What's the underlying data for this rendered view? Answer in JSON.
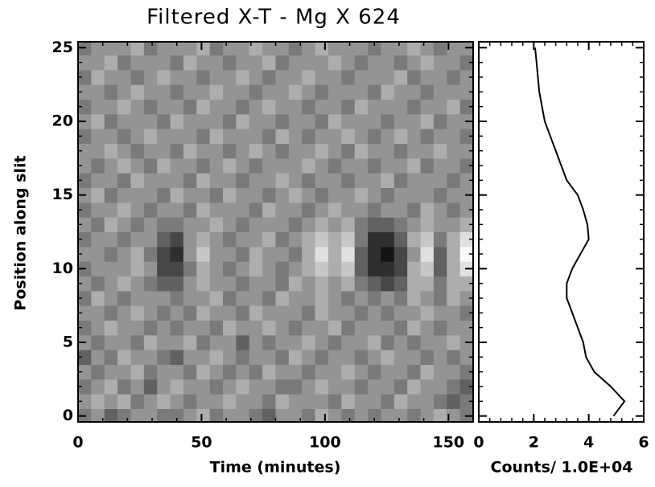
{
  "chart_data": [
    {
      "type": "heatmap",
      "title": "Filtered X-T - Mg X 624",
      "xlabel": "Time (minutes)",
      "ylabel": "Position along slit",
      "xlim": [
        0,
        160
      ],
      "ylim": [
        -0.4,
        25.4
      ],
      "xticks": [
        0,
        50,
        100,
        150
      ],
      "yticks": [
        0,
        5,
        10,
        15,
        20,
        25
      ],
      "minor_ticks": 5,
      "zlim": [
        0,
        9
      ],
      "y": [
        0,
        1,
        2,
        3,
        4,
        5,
        6,
        7,
        8,
        9,
        10,
        11,
        12,
        13,
        14,
        15,
        16,
        17,
        18,
        19,
        20,
        21,
        22,
        23,
        24,
        25
      ],
      "z": [
        [
          4,
          5,
          3,
          4,
          5,
          5,
          4,
          4,
          5,
          6,
          4,
          5,
          5,
          4,
          3,
          5,
          5,
          4,
          6,
          5,
          4,
          5,
          4,
          5,
          5,
          4,
          5,
          6,
          5,
          4
        ],
        [
          5,
          6,
          5,
          6,
          4,
          5,
          6,
          5,
          4,
          5,
          5,
          6,
          5,
          5,
          4,
          6,
          5,
          5,
          5,
          4,
          6,
          5,
          5,
          4,
          6,
          5,
          5,
          4,
          3,
          4
        ],
        [
          4,
          5,
          6,
          4,
          5,
          3,
          5,
          6,
          5,
          5,
          4,
          5,
          6,
          5,
          5,
          4,
          4,
          5,
          6,
          5,
          5,
          4,
          5,
          5,
          4,
          6,
          5,
          5,
          4,
          3
        ],
        [
          5,
          4,
          5,
          5,
          6,
          4,
          5,
          5,
          4,
          6,
          5,
          4,
          5,
          4,
          6,
          5,
          5,
          4,
          5,
          5,
          6,
          5,
          4,
          5,
          5,
          4,
          6,
          5,
          5,
          4
        ],
        [
          3,
          5,
          4,
          6,
          5,
          5,
          4,
          3,
          5,
          5,
          6,
          5,
          4,
          5,
          5,
          4,
          6,
          5,
          4,
          5,
          5,
          4,
          5,
          6,
          5,
          5,
          4,
          5,
          4,
          5
        ],
        [
          5,
          4,
          5,
          5,
          4,
          6,
          5,
          5,
          6,
          4,
          5,
          5,
          3,
          5,
          4,
          5,
          5,
          6,
          5,
          4,
          5,
          5,
          6,
          4,
          5,
          4,
          5,
          5,
          6,
          5
        ],
        [
          4,
          5,
          6,
          5,
          5,
          4,
          5,
          4,
          5,
          5,
          4,
          6,
          5,
          5,
          6,
          5,
          4,
          5,
          5,
          6,
          4,
          5,
          5,
          5,
          4,
          6,
          5,
          4,
          5,
          5
        ],
        [
          5,
          5,
          4,
          5,
          6,
          5,
          4,
          5,
          4,
          6,
          5,
          5,
          4,
          6,
          5,
          5,
          5,
          4,
          6,
          5,
          5,
          4,
          5,
          4,
          5,
          5,
          6,
          5,
          5,
          4
        ],
        [
          4,
          6,
          5,
          4,
          5,
          5,
          5,
          4,
          5,
          5,
          6,
          4,
          5,
          5,
          4,
          6,
          5,
          5,
          6,
          5,
          4,
          5,
          4,
          5,
          4,
          6,
          5,
          4,
          6,
          5
        ],
        [
          5,
          4,
          5,
          6,
          5,
          4,
          3,
          3,
          5,
          6,
          5,
          5,
          4,
          5,
          5,
          4,
          6,
          5,
          6,
          5,
          6,
          4,
          3,
          2,
          3,
          6,
          6,
          4,
          6,
          6
        ],
        [
          4,
          5,
          5,
          5,
          6,
          5,
          2,
          2,
          4,
          6,
          5,
          4,
          5,
          6,
          5,
          4,
          5,
          6,
          7,
          6,
          7,
          3,
          1,
          1,
          2,
          6,
          7,
          3,
          6,
          8
        ],
        [
          5,
          5,
          4,
          5,
          6,
          4,
          2,
          1,
          5,
          7,
          5,
          5,
          4,
          6,
          5,
          5,
          4,
          6,
          8,
          6,
          8,
          3,
          1,
          0,
          2,
          5,
          8,
          3,
          6,
          9
        ],
        [
          4,
          5,
          5,
          4,
          5,
          5,
          3,
          2,
          5,
          6,
          5,
          4,
          5,
          5,
          6,
          4,
          5,
          6,
          7,
          6,
          7,
          4,
          1,
          1,
          3,
          6,
          7,
          4,
          6,
          8
        ],
        [
          5,
          4,
          6,
          5,
          4,
          5,
          4,
          4,
          5,
          5,
          6,
          5,
          4,
          5,
          5,
          5,
          4,
          5,
          6,
          5,
          6,
          4,
          3,
          3,
          4,
          5,
          6,
          5,
          5,
          6
        ],
        [
          4,
          5,
          5,
          6,
          5,
          4,
          5,
          5,
          4,
          6,
          5,
          5,
          5,
          4,
          6,
          5,
          5,
          4,
          5,
          6,
          5,
          5,
          4,
          5,
          5,
          4,
          6,
          5,
          4,
          5
        ],
        [
          5,
          6,
          4,
          5,
          5,
          5,
          4,
          6,
          5,
          5,
          4,
          6,
          5,
          5,
          4,
          5,
          6,
          5,
          4,
          5,
          5,
          6,
          5,
          4,
          5,
          5,
          5,
          4,
          5,
          5
        ],
        [
          4,
          5,
          5,
          4,
          6,
          5,
          5,
          5,
          4,
          6,
          5,
          5,
          4,
          5,
          5,
          6,
          5,
          4,
          5,
          5,
          4,
          5,
          5,
          6,
          4,
          5,
          5,
          5,
          4,
          5
        ],
        [
          5,
          4,
          5,
          6,
          5,
          4,
          6,
          5,
          5,
          4,
          5,
          6,
          5,
          4,
          5,
          5,
          5,
          6,
          5,
          4,
          5,
          5,
          4,
          5,
          5,
          6,
          4,
          5,
          5,
          4
        ],
        [
          5,
          5,
          6,
          5,
          4,
          5,
          5,
          4,
          6,
          5,
          5,
          4,
          5,
          6,
          5,
          4,
          5,
          5,
          6,
          5,
          4,
          6,
          5,
          5,
          4,
          5,
          5,
          6,
          5,
          5
        ],
        [
          4,
          5,
          5,
          4,
          5,
          6,
          5,
          5,
          5,
          4,
          6,
          5,
          5,
          5,
          4,
          6,
          5,
          4,
          5,
          5,
          6,
          5,
          4,
          5,
          6,
          5,
          4,
          5,
          5,
          4
        ],
        [
          5,
          6,
          4,
          5,
          5,
          5,
          4,
          6,
          5,
          5,
          5,
          4,
          6,
          5,
          5,
          4,
          5,
          5,
          4,
          6,
          5,
          5,
          5,
          4,
          5,
          5,
          6,
          4,
          5,
          5
        ],
        [
          4,
          5,
          5,
          6,
          5,
          4,
          5,
          5,
          4,
          6,
          5,
          5,
          4,
          5,
          6,
          5,
          5,
          4,
          5,
          5,
          4,
          6,
          5,
          5,
          5,
          4,
          5,
          5,
          6,
          4
        ],
        [
          5,
          5,
          4,
          5,
          6,
          5,
          5,
          4,
          5,
          5,
          6,
          5,
          5,
          4,
          5,
          5,
          6,
          5,
          4,
          5,
          5,
          5,
          4,
          6,
          5,
          5,
          4,
          5,
          5,
          5
        ],
        [
          4,
          6,
          5,
          5,
          4,
          5,
          6,
          5,
          5,
          4,
          5,
          5,
          6,
          5,
          4,
          5,
          5,
          6,
          5,
          5,
          4,
          5,
          5,
          5,
          6,
          4,
          5,
          5,
          4,
          5
        ],
        [
          5,
          5,
          6,
          4,
          5,
          5,
          5,
          4,
          6,
          5,
          5,
          4,
          5,
          5,
          6,
          4,
          5,
          5,
          5,
          6,
          5,
          4,
          5,
          5,
          4,
          5,
          6,
          5,
          5,
          4
        ],
        [
          4,
          5,
          5,
          5,
          6,
          4,
          5,
          5,
          5,
          6,
          4,
          5,
          5,
          6,
          5,
          5,
          4,
          5,
          6,
          5,
          5,
          5,
          4,
          5,
          5,
          6,
          5,
          4,
          5,
          5
        ]
      ]
    },
    {
      "type": "profile",
      "xlabel": "Counts/ 1.0E+04",
      "xlim": [
        0,
        6
      ],
      "xticks": [
        0,
        2,
        4,
        6
      ],
      "ylim": [
        -0.4,
        25.4
      ],
      "yticks": [
        0,
        5,
        10,
        15,
        20,
        25
      ],
      "minor_ticks": 5,
      "color": "#000000",
      "positions": [
        0,
        1,
        2,
        3,
        4,
        5,
        6,
        7,
        8,
        9,
        10,
        11,
        12,
        13,
        14,
        15,
        16,
        17,
        18,
        19,
        20,
        21,
        22,
        23,
        24,
        25
      ],
      "values": [
        4.9,
        5.3,
        4.8,
        4.2,
        3.9,
        3.8,
        3.6,
        3.4,
        3.2,
        3.2,
        3.4,
        3.7,
        4.0,
        3.95,
        3.8,
        3.6,
        3.2,
        3.0,
        2.8,
        2.6,
        2.4,
        2.3,
        2.2,
        2.15,
        2.1,
        2.05
      ]
    }
  ]
}
